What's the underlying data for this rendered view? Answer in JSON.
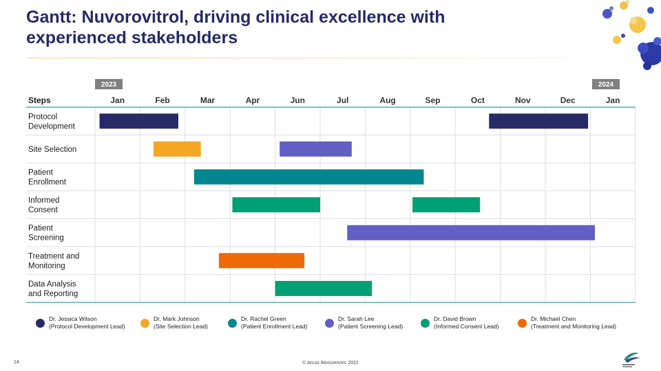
{
  "slide": {
    "title": "Gantt: Nuvorovitrol, driving clinical excellence with experienced stakeholders",
    "page_number": "14",
    "copyright": "© Arcus Biosciences 2022"
  },
  "colors": {
    "title": "#262a66",
    "teal_rule": "#2f9c95",
    "year_badge": "#808080"
  },
  "chart_data": {
    "type": "gantt",
    "header_label": "Steps",
    "years": [
      {
        "label": "2023",
        "month_index": 0
      },
      {
        "label": "2024",
        "month_index": 11
      }
    ],
    "months": [
      "Jan",
      "Feb",
      "Mar",
      "Apr",
      "Jun",
      "Jul",
      "Aug",
      "Sep",
      "Oct",
      "Nov",
      "Dec",
      "Jan"
    ],
    "steps": [
      {
        "lines": [
          "Protocol",
          "Development"
        ]
      },
      {
        "lines": [
          "Site Selection"
        ]
      },
      {
        "lines": [
          "Patient",
          "Enrollment"
        ]
      },
      {
        "lines": [
          "Informed",
          "Consent"
        ]
      },
      {
        "lines": [
          "Patient",
          "Screening"
        ]
      },
      {
        "lines": [
          "Treatment and",
          "Monitoring"
        ]
      },
      {
        "lines": [
          "Data Analysis",
          "and Reporting"
        ]
      }
    ],
    "bars": [
      {
        "step": 0,
        "start": 0.1,
        "end": 1.85,
        "owner": 0
      },
      {
        "step": 0,
        "start": 8.75,
        "end": 10.95,
        "owner": 0
      },
      {
        "step": 1,
        "start": 1.3,
        "end": 2.35,
        "owner": 1
      },
      {
        "step": 1,
        "start": 4.1,
        "end": 5.7,
        "owner": 3
      },
      {
        "step": 2,
        "start": 2.2,
        "end": 7.3,
        "owner": 2
      },
      {
        "step": 3,
        "start": 3.05,
        "end": 5.0,
        "owner": 4
      },
      {
        "step": 3,
        "start": 7.05,
        "end": 8.55,
        "owner": 4
      },
      {
        "step": 4,
        "start": 5.6,
        "end": 11.1,
        "owner": 3
      },
      {
        "step": 5,
        "start": 2.75,
        "end": 4.65,
        "owner": 5
      },
      {
        "step": 6,
        "start": 4.0,
        "end": 6.15,
        "owner": 4
      }
    ],
    "legend": [
      {
        "name": "Dr. Jessica Wilson",
        "role": "(Protocol Development Lead)",
        "color": "#262a66"
      },
      {
        "name": "Dr. Mark Johnson",
        "role": "(Site Selection Lead)",
        "color": "#f5a623"
      },
      {
        "name": "Dr. Rachel Green",
        "role": "(Patient Enrollment Lead)",
        "color": "#00878f"
      },
      {
        "name": "Dr. Sarah Lee",
        "role": "(Patient Screening Lead)",
        "color": "#5f5fc4"
      },
      {
        "name": "Dr. David Brown",
        "role": "(Informed Consent Lead)",
        "color": "#00a075"
      },
      {
        "name": "Dr. Michael Chen",
        "role": "(Treatment and Monitoring Lead)",
        "color": "#ee6a07"
      }
    ],
    "legend_placement": "bottom",
    "grid": true
  }
}
